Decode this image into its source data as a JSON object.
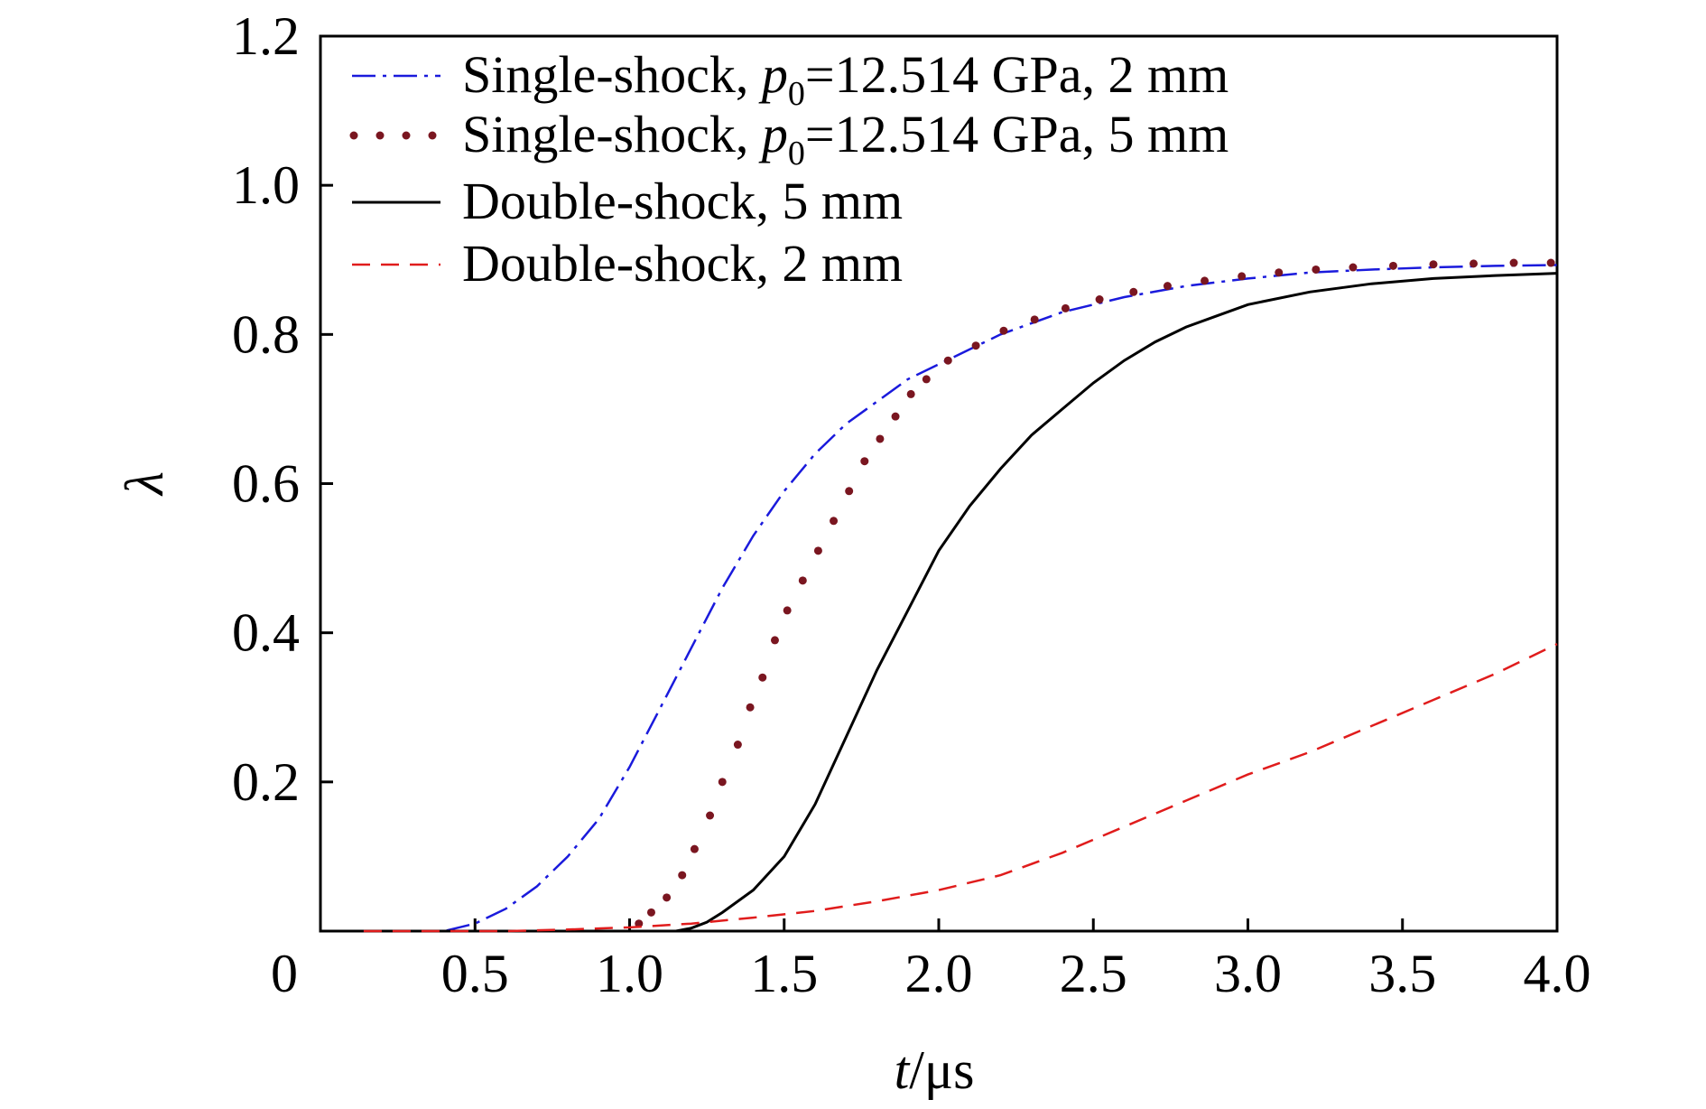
{
  "chart_data": {
    "type": "line",
    "xlabel": {
      "var": "t",
      "unit": "/μs"
    },
    "ylabel": "λ",
    "xlim": [
      0,
      4.0
    ],
    "ylim": [
      0,
      1.2
    ],
    "x_ticks": [
      {
        "v": 0.5,
        "label": "0.5"
      },
      {
        "v": 1.0,
        "label": "1.0"
      },
      {
        "v": 1.5,
        "label": "1.5"
      },
      {
        "v": 2.0,
        "label": "2.0"
      },
      {
        "v": 2.5,
        "label": "2.5"
      },
      {
        "v": 3.0,
        "label": "3.0"
      },
      {
        "v": 3.5,
        "label": "3.5"
      },
      {
        "v": 4.0,
        "label": "4.0"
      }
    ],
    "y_ticks": [
      {
        "v": 0.2,
        "label": "0.2"
      },
      {
        "v": 0.4,
        "label": "0.4"
      },
      {
        "v": 0.6,
        "label": "0.6"
      },
      {
        "v": 0.8,
        "label": "0.8"
      },
      {
        "v": 1.0,
        "label": "1.0"
      },
      {
        "v": 1.2,
        "label": "1.2"
      }
    ],
    "origin_label": "0",
    "grid": false,
    "legend_position": "top-left",
    "series": [
      {
        "name": "Single-shock, p0=12.514 GPa, 2 mm",
        "legend": {
          "prefix": "Single-shock, ",
          "var": "p",
          "sub": "0",
          "suffix": "=12.514 GPa, 2 mm"
        },
        "color": "#1a1adc",
        "style": "dash-dot",
        "x": [
          0.14,
          0.4,
          0.5,
          0.6,
          0.7,
          0.8,
          0.9,
          1.0,
          1.1,
          1.2,
          1.3,
          1.4,
          1.5,
          1.6,
          1.7,
          1.8,
          1.9,
          2.0,
          2.2,
          2.4,
          2.6,
          2.8,
          3.0,
          3.2,
          3.4,
          3.6,
          3.8,
          4.0
        ],
        "y": [
          0.0,
          0.0,
          0.01,
          0.03,
          0.06,
          0.1,
          0.15,
          0.22,
          0.3,
          0.38,
          0.46,
          0.53,
          0.59,
          0.64,
          0.68,
          0.71,
          0.74,
          0.76,
          0.8,
          0.83,
          0.85,
          0.865,
          0.875,
          0.883,
          0.887,
          0.89,
          0.892,
          0.893
        ]
      },
      {
        "name": "Single-shock, p0=12.514 GPa, 5 mm",
        "legend": {
          "prefix": "Single-shock, ",
          "var": "p",
          "sub": "0",
          "suffix": "=12.514 GPa, 5 mm"
        },
        "color": "#7a1620",
        "style": "dots",
        "x": [
          1.03,
          1.07,
          1.12,
          1.17,
          1.21,
          1.26,
          1.3,
          1.35,
          1.39,
          1.43,
          1.47,
          1.51,
          1.56,
          1.61,
          1.66,
          1.71,
          1.76,
          1.81,
          1.86,
          1.91,
          1.96,
          2.03,
          2.12,
          2.21,
          2.31,
          2.41,
          2.52,
          2.63,
          2.74,
          2.86,
          2.98,
          3.1,
          3.22,
          3.34,
          3.47,
          3.6,
          3.73,
          3.86,
          3.98
        ],
        "y": [
          0.01,
          0.025,
          0.045,
          0.075,
          0.11,
          0.155,
          0.2,
          0.25,
          0.3,
          0.34,
          0.39,
          0.43,
          0.47,
          0.51,
          0.55,
          0.59,
          0.63,
          0.66,
          0.69,
          0.72,
          0.74,
          0.765,
          0.785,
          0.805,
          0.82,
          0.835,
          0.847,
          0.857,
          0.865,
          0.872,
          0.878,
          0.883,
          0.887,
          0.89,
          0.892,
          0.894,
          0.895,
          0.896,
          0.896
        ]
      },
      {
        "name": "Double-shock, 5 mm",
        "legend": {
          "prefix": "Double-shock, 5 mm",
          "var": "",
          "sub": "",
          "suffix": ""
        },
        "color": "#000000",
        "style": "solid",
        "x": [
          0.14,
          1.15,
          1.2,
          1.25,
          1.3,
          1.4,
          1.5,
          1.6,
          1.7,
          1.8,
          1.9,
          2.0,
          2.1,
          2.2,
          2.3,
          2.4,
          2.5,
          2.6,
          2.7,
          2.8,
          2.9,
          3.0,
          3.2,
          3.4,
          3.6,
          3.8,
          4.0
        ],
        "y": [
          0.0,
          0.0,
          0.004,
          0.012,
          0.025,
          0.055,
          0.1,
          0.17,
          0.26,
          0.35,
          0.43,
          0.51,
          0.57,
          0.62,
          0.665,
          0.7,
          0.735,
          0.765,
          0.79,
          0.81,
          0.825,
          0.84,
          0.857,
          0.868,
          0.875,
          0.879,
          0.882
        ]
      },
      {
        "name": "Double-shock, 2 mm",
        "legend": {
          "prefix": "Double-shock, 2 mm",
          "var": "",
          "sub": "",
          "suffix": ""
        },
        "color": "#e01c1c",
        "style": "dashed",
        "x": [
          0.14,
          0.6,
          0.8,
          1.0,
          1.2,
          1.4,
          1.6,
          1.8,
          2.0,
          2.2,
          2.4,
          2.6,
          2.8,
          3.0,
          3.2,
          3.4,
          3.6,
          3.8,
          4.0
        ],
        "y": [
          0.0,
          0.0,
          0.002,
          0.005,
          0.01,
          0.018,
          0.027,
          0.04,
          0.055,
          0.075,
          0.105,
          0.14,
          0.175,
          0.21,
          0.24,
          0.275,
          0.31,
          0.345,
          0.385
        ]
      }
    ]
  }
}
